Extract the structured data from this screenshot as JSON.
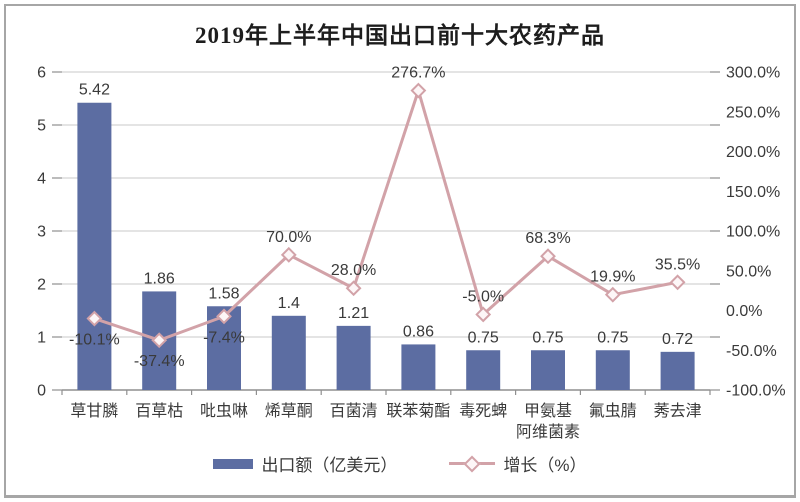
{
  "frame": {
    "background": "#ffffff",
    "border_color": "#a6a6a6"
  },
  "chart_data": {
    "type": "bar",
    "combo": "bar+line dual axis",
    "title": "2019年上半年中国出口前十大农药产品",
    "categories": [
      "草甘膦",
      "百草枯",
      "吡虫啉",
      "烯草酮",
      "百菌清",
      "联苯菊酯",
      "毒死蜱",
      "甲氨基\n阿维菌素",
      "氟虫腈",
      "莠去津"
    ],
    "series": [
      {
        "name": "出口额（亿美元）",
        "chart": "bar",
        "axis": "left",
        "color": "#5c6da2",
        "values": [
          5.42,
          1.86,
          1.58,
          1.4,
          1.21,
          0.86,
          0.75,
          0.75,
          0.75,
          0.72
        ],
        "labels": [
          "5.42",
          "1.86",
          "1.58",
          "1.4",
          "1.21",
          "0.86",
          "0.75",
          "0.75",
          "0.75",
          "0.72"
        ]
      },
      {
        "name": "增长（%）",
        "chart": "line",
        "axis": "right",
        "color": "#d2a2a8",
        "marker": "open-diamond",
        "marker_fill": "#fdf6f7",
        "values": [
          -10.1,
          -37.4,
          -7.4,
          70.0,
          28.0,
          276.7,
          -5.0,
          68.3,
          19.9,
          35.5
        ],
        "labels": [
          "-10.1%",
          "-37.4%",
          "-7.4%",
          "70.0%",
          "28.0%",
          "276.7%",
          "-5.0%",
          "68.3%",
          "19.9%",
          "35.5%"
        ],
        "label_placement": [
          "below",
          "below",
          "below",
          "above",
          "above",
          "above",
          "above",
          "above",
          "above",
          "above"
        ]
      }
    ],
    "left_axis": {
      "min": 0,
      "max": 6,
      "step": 1,
      "tick_labels": [
        "0",
        "1",
        "2",
        "3",
        "4",
        "5",
        "6"
      ]
    },
    "right_axis": {
      "min": -100,
      "max": 300,
      "step": 50,
      "tick_labels": [
        "-100.0%",
        "-50.0%",
        "0.0%",
        "50.0%",
        "100.0%",
        "150.0%",
        "200.0%",
        "250.0%",
        "300.0%"
      ]
    },
    "grid": true,
    "legend_position": "bottom",
    "grid_color": "#c9c9c9",
    "axis_color": "#8f8f8f",
    "text_color": "#3a3a3a"
  },
  "legend": {
    "bar_label": "出口额（亿美元）",
    "line_label": "增长（%）"
  }
}
